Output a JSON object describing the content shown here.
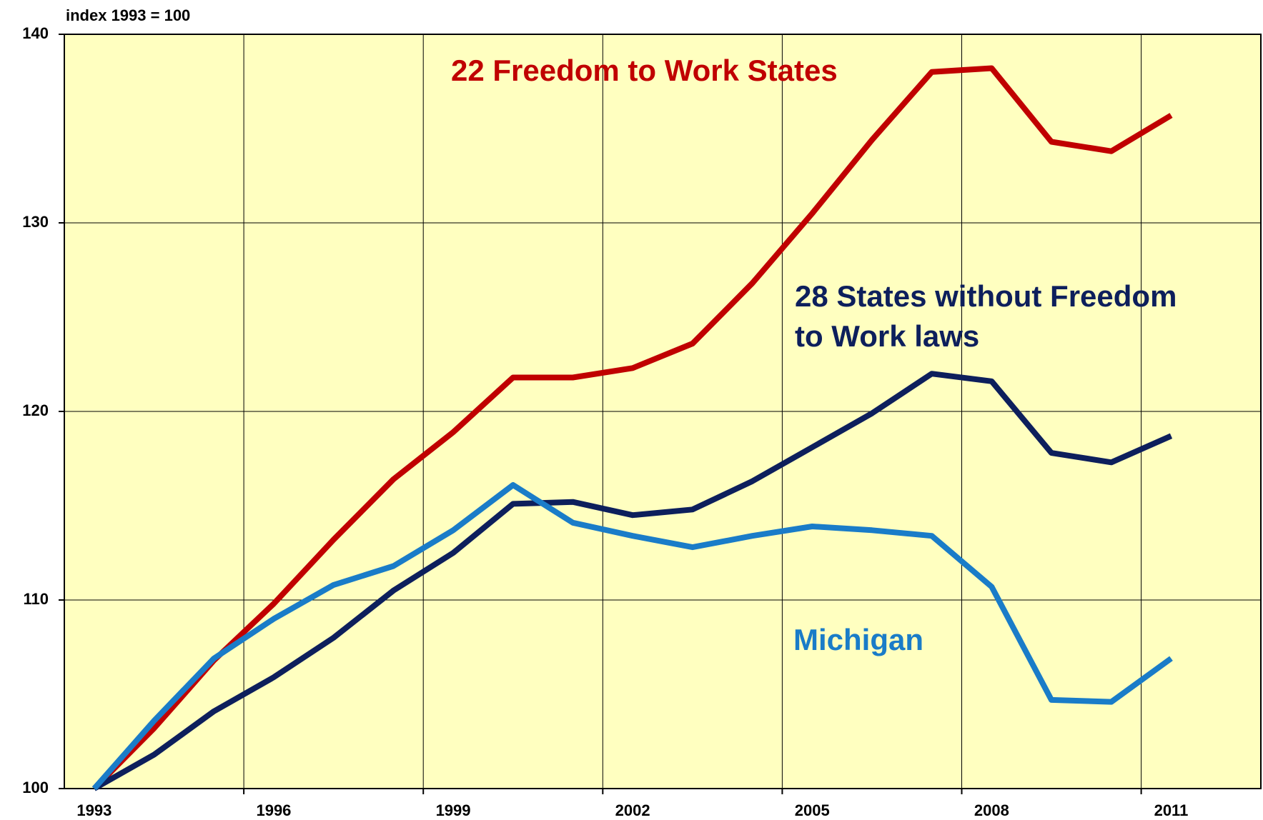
{
  "chart_data": {
    "type": "line",
    "y_axis_label": "index 1993 = 100",
    "x": [
      1993,
      1994,
      1995,
      1996,
      1997,
      1998,
      1999,
      2000,
      2001,
      2002,
      2003,
      2004,
      2005,
      2006,
      2007,
      2008,
      2009,
      2010,
      2011
    ],
    "series": [
      {
        "name": "22 Freedom to Work States",
        "color": "#c00000",
        "values": [
          100,
          103.2,
          106.8,
          109.8,
          113.2,
          116.4,
          118.9,
          121.8,
          121.8,
          122.3,
          123.6,
          126.8,
          130.5,
          134.4,
          138.0,
          138.2,
          134.3,
          133.8,
          135.7
        ]
      },
      {
        "name": "28 States without Freedom to Work laws",
        "color": "#0d1f5c",
        "values": [
          100,
          101.8,
          104.1,
          105.9,
          108.0,
          110.5,
          112.5,
          115.1,
          115.2,
          114.5,
          114.8,
          116.3,
          118.1,
          119.9,
          122.0,
          121.6,
          117.8,
          117.3,
          118.7
        ]
      },
      {
        "name": "Michigan",
        "color": "#1a7cc8",
        "values": [
          100,
          103.6,
          106.9,
          109.0,
          110.8,
          111.8,
          113.7,
          116.1,
          114.1,
          113.4,
          112.8,
          113.4,
          113.9,
          113.7,
          113.4,
          110.7,
          104.7,
          104.6,
          106.9
        ]
      }
    ],
    "xlim": [
      1992.5,
      2012.5
    ],
    "xticks": [
      1993,
      1996,
      1999,
      2002,
      2005,
      2008,
      2011
    ],
    "xgrid": [
      1995.5,
      1998.5,
      2001.5,
      2004.5,
      2007.5,
      2010.5
    ],
    "ylim": [
      100,
      140
    ],
    "yticks": [
      100,
      110,
      120,
      130,
      140
    ],
    "grid": true,
    "background": "#ffffc0"
  }
}
